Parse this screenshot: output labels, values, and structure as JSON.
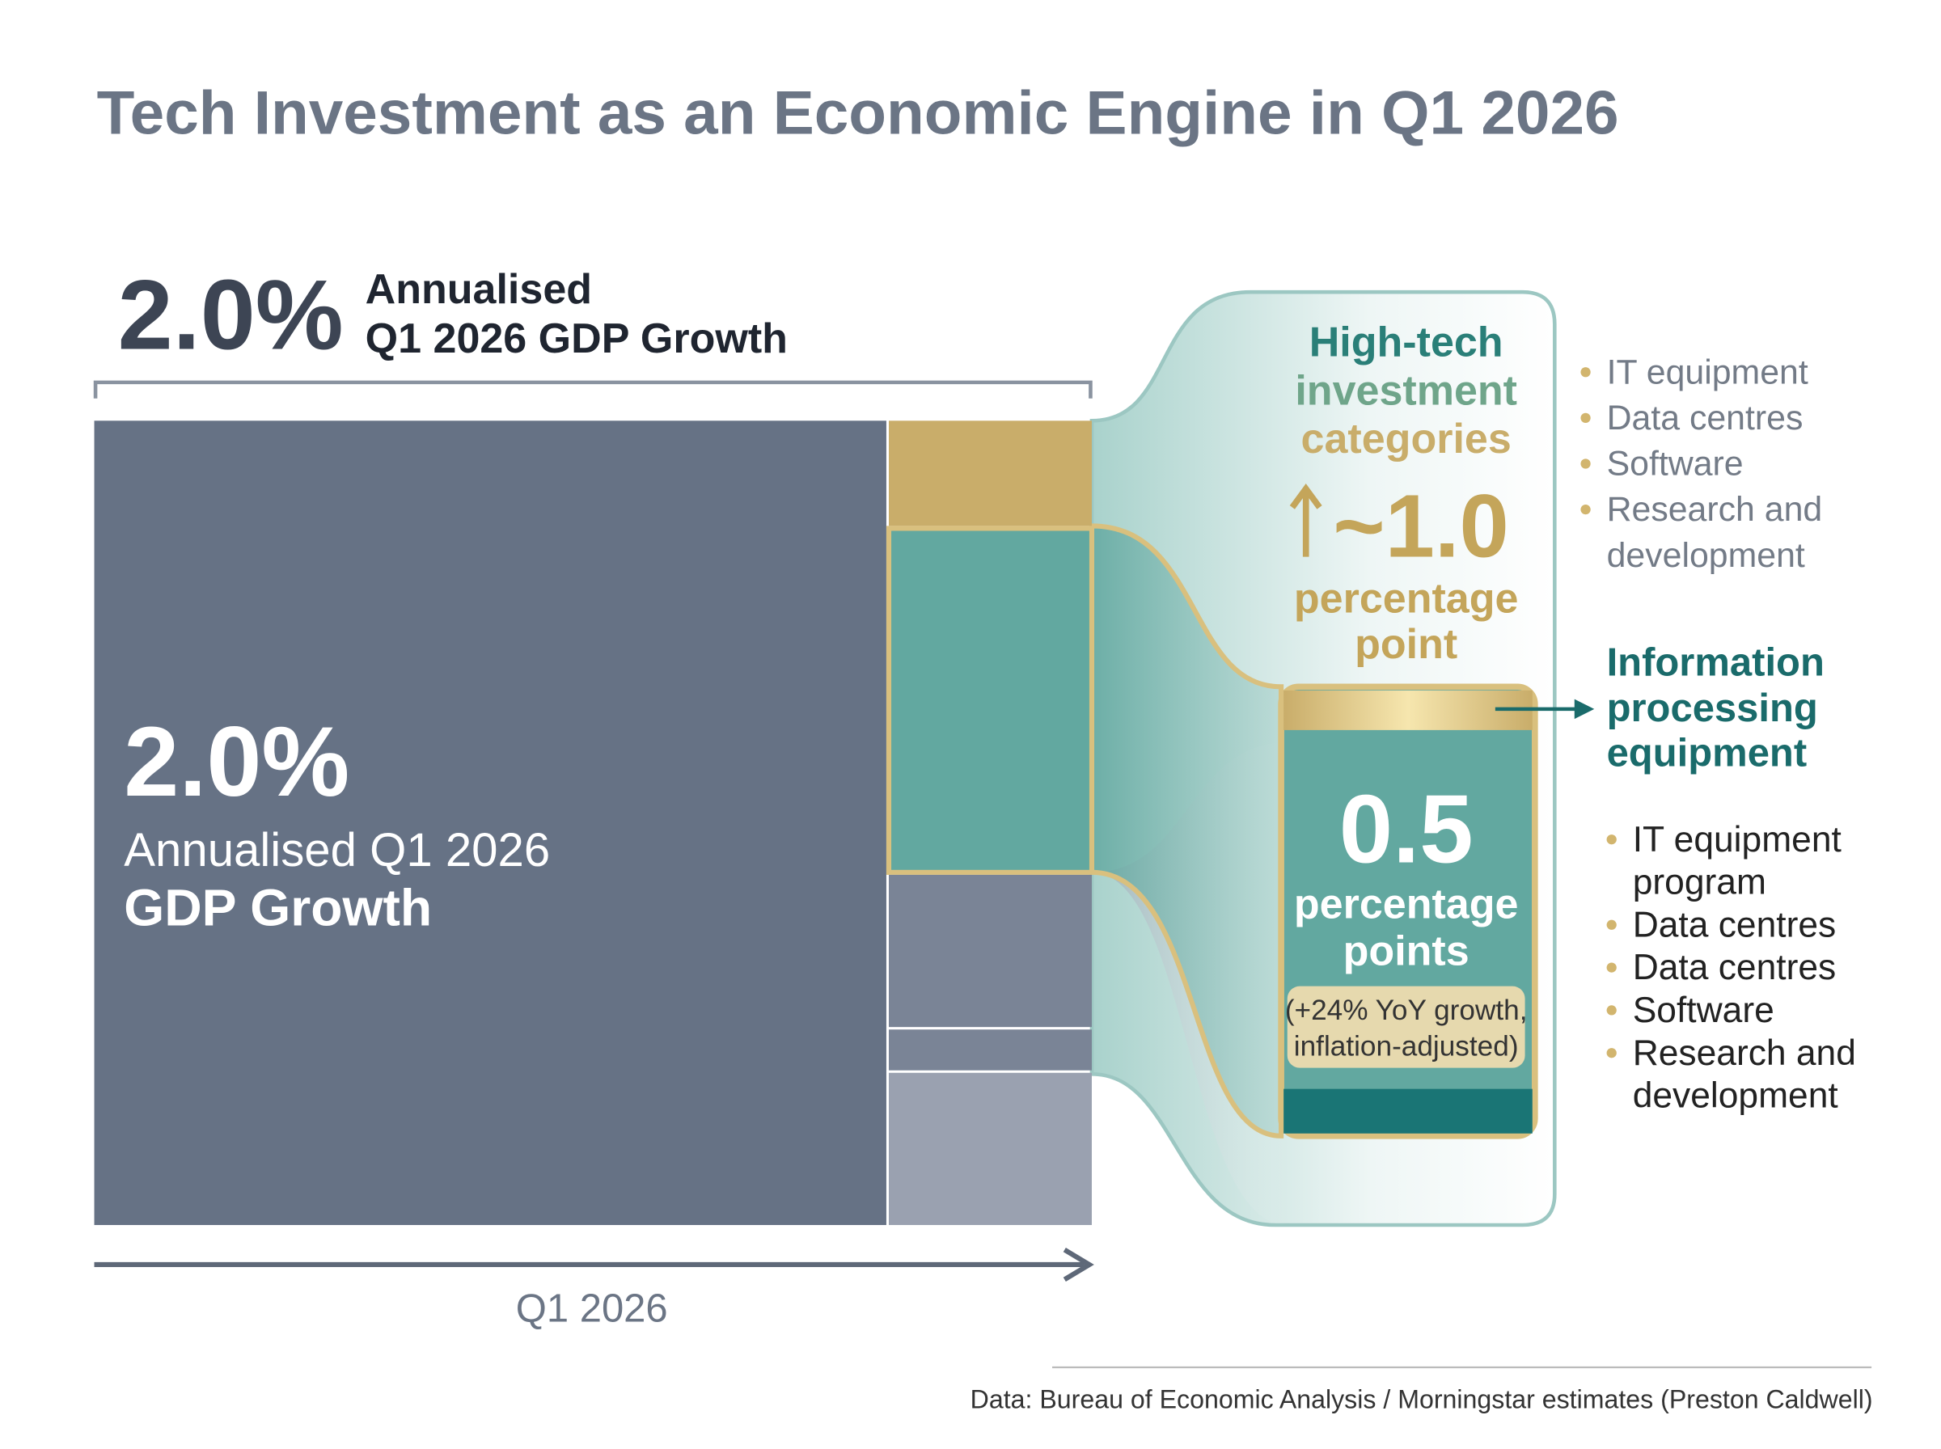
{
  "title": "Tech Investment as an Economic Engine in Q1 2026",
  "header": {
    "value": "2.0%",
    "label_lines": [
      "Annualised",
      "Q1 2026 GDP Growth"
    ]
  },
  "main_block": {
    "value": "2.0%",
    "label": "Annualised Q1 2026",
    "label_bold": "GDP Growth"
  },
  "x_axis_label": "Q1 2026",
  "callout": {
    "title_lines": [
      "High-tech",
      "investment",
      "categories"
    ],
    "value": "~1.0",
    "unit_lines": [
      "percentage",
      "point"
    ],
    "items": [
      [
        "IT equipment"
      ],
      [
        "Data centres"
      ],
      [
        "Software"
      ],
      [
        "Research and",
        "development"
      ]
    ]
  },
  "subgroup": {
    "title_lines": [
      "Information",
      "processing",
      "equipment"
    ],
    "value": "0.5",
    "unit_lines": [
      "percentage",
      "points"
    ],
    "note_lines": [
      "(+24% YoY growth,",
      "inflation-adjusted)"
    ],
    "items": [
      [
        "IT equipment",
        "program"
      ],
      [
        "Data centres"
      ],
      [
        "Data centres"
      ],
      [
        "Software"
      ],
      [
        "Research and",
        "development"
      ]
    ]
  },
  "source": "Data: Bureau of Economic Analysis / Morningstar estimates (Preston Caldwell)"
}
